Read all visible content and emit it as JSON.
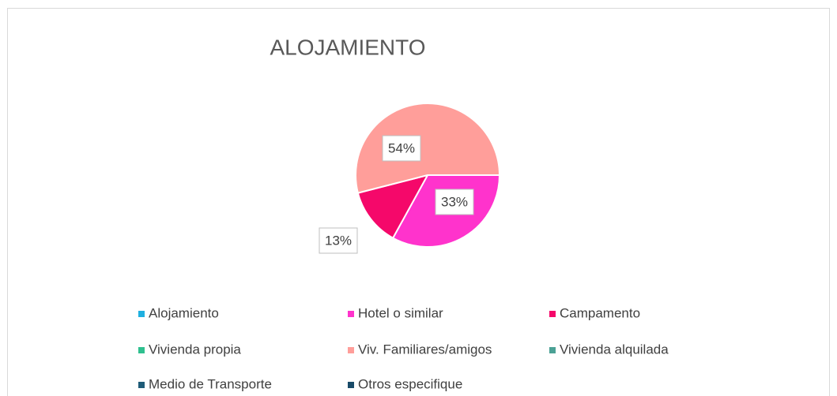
{
  "chart_data": {
    "type": "pie",
    "title": "ALOJAMIENTO",
    "categories": [
      "Alojamiento",
      "Hotel o similar",
      "Campamento",
      "Vivienda propia",
      "Viv. Familiares/amigos",
      "Vivienda alquilada",
      "Medio de Transporte",
      "Otros especifique"
    ],
    "values": [
      0,
      33,
      13,
      0,
      54,
      0,
      0,
      0
    ],
    "value_labels": [
      null,
      "33%",
      "13%",
      null,
      "54%",
      null,
      null,
      null
    ],
    "colors": [
      "#1fb0e0",
      "#ff33cc",
      "#f5086a",
      "#2fc08f",
      "#ff9e9a",
      "#4ba195",
      "#1f5c78",
      "#194a68"
    ],
    "legend": "bottom"
  }
}
